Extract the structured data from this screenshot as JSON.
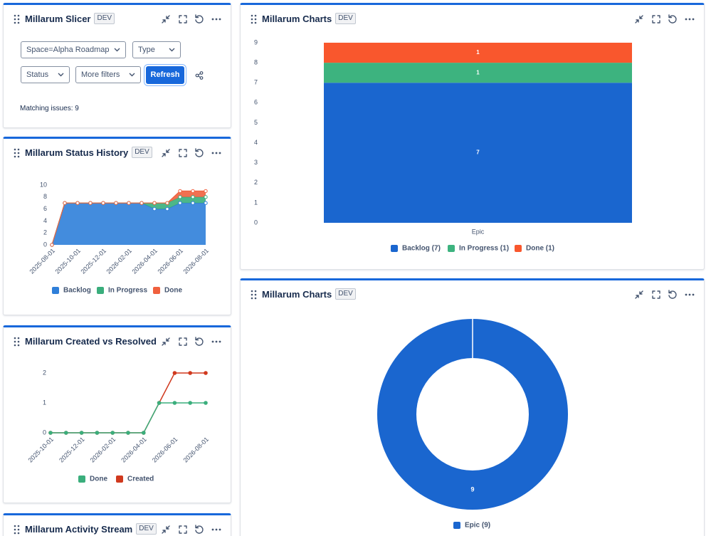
{
  "panels": [
    {
      "title": "Millarum Slicer",
      "badge": "DEV",
      "filters": [
        "Space=Alpha Roadmap",
        "Type",
        "Status",
        "More filters"
      ],
      "action": "Refresh",
      "status": "Matching issues: 9"
    },
    {
      "title": "Millarum Status History",
      "badge": "DEV",
      "chart_data": {
        "type": "stacked-area",
        "categories": [
          "2025-08-01",
          null,
          "2025-10-01",
          null,
          "2025-12-01",
          null,
          "2026-02-01",
          null,
          "2026-04-01",
          null,
          "2026-06-01",
          null,
          "2026-08-01"
        ],
        "series": [
          {
            "name": "Backlog",
            "color": "#2f7fd9",
            "values": [
              0,
              7,
              7,
              7,
              7,
              7,
              7,
              7,
              6,
              6,
              7,
              7,
              7
            ]
          },
          {
            "name": "In Progress",
            "color": "#3aae7c",
            "values": [
              0,
              0,
              0,
              0,
              0,
              0,
              0,
              0,
              1,
              1,
              1,
              1,
              1
            ]
          },
          {
            "name": "Done",
            "color": "#f0603e",
            "values": [
              0,
              0,
              0,
              0,
              0,
              0,
              0,
              0,
              0,
              0,
              1,
              1,
              1
            ]
          }
        ],
        "ylim": [
          0,
          10
        ],
        "yticks": [
          0,
          2,
          4,
          6,
          8,
          10
        ]
      }
    },
    {
      "title": "Millarum Created vs Resolved",
      "badge": "DEV",
      "chart_data": {
        "type": "line",
        "categories": [
          "2025-10-01",
          null,
          "2025-12-01",
          null,
          "2026-02-01",
          null,
          "2026-04-01",
          null,
          "2026-06-01",
          null,
          "2026-08-01"
        ],
        "series": [
          {
            "name": "Done",
            "color": "#3aae7c",
            "values": [
              0,
              0,
              0,
              0,
              0,
              0,
              0,
              1,
              1,
              1,
              1
            ]
          },
          {
            "name": "Created",
            "color": "#d0391e",
            "values": [
              0,
              0,
              0,
              0,
              0,
              0,
              0,
              1,
              2,
              2,
              2
            ]
          }
        ],
        "ylim": [
          0,
          2
        ],
        "yticks": [
          0,
          1,
          2
        ]
      }
    },
    {
      "title": "Millarum Activity Stream",
      "badge": "DEV"
    },
    {
      "title": "Millarum Charts",
      "badge": "DEV",
      "chart_data": {
        "type": "stacked-bar",
        "categories": [
          "Epic"
        ],
        "series": [
          {
            "name": "Backlog (7)",
            "color": "#1a66cf",
            "values": [
              7
            ]
          },
          {
            "name": "In Progress (1)",
            "color": "#3db37f",
            "values": [
              1
            ]
          },
          {
            "name": "Done (1)",
            "color": "#f9572d",
            "values": [
              1
            ]
          }
        ],
        "ylim": [
          0,
          9
        ],
        "yticks": [
          0,
          1,
          2,
          3,
          4,
          5,
          6,
          7,
          8,
          9
        ]
      }
    },
    {
      "title": "Millarum Charts",
      "badge": "DEV",
      "chart_data": {
        "type": "donut",
        "categories": [
          "Epic (9)"
        ],
        "values": [
          9
        ],
        "colors": [
          "#1a66cf"
        ]
      }
    }
  ]
}
